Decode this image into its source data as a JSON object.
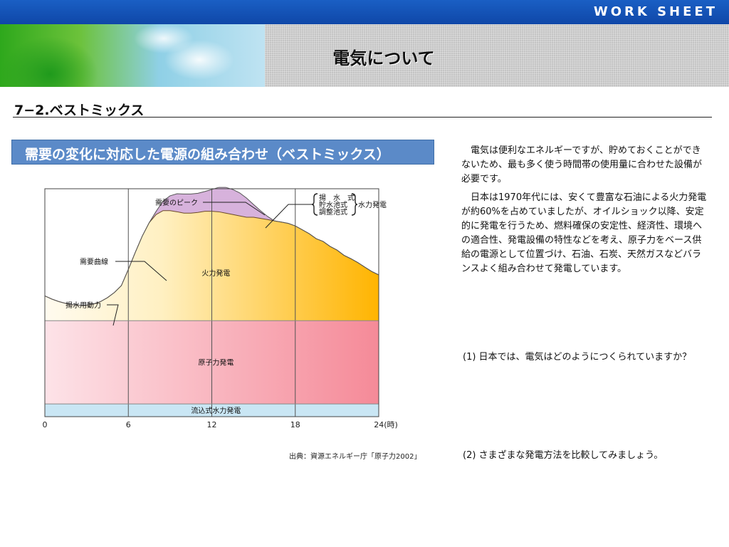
{
  "header": {
    "label": "WORK SHEET",
    "title": "電気について"
  },
  "section": {
    "title": "7−2.ベストミックス"
  },
  "chart_header": "需要の変化に対応した電源の組み合わせ（ベストミックス）",
  "chart_data": {
    "type": "area",
    "title": "需要の変化に対応した電源の組み合わせ（ベストミックス）",
    "x_ticks": [
      "0",
      "6",
      "12",
      "18",
      "24(時)"
    ],
    "xlim": [
      0,
      24
    ],
    "ylim": [
      0,
      100
    ],
    "hour_step": 0.5,
    "series": [
      {
        "name": "流込式水力発電",
        "values": [
          5.6,
          5.6,
          5.6,
          5.6,
          5.6,
          5.6,
          5.6,
          5.6,
          5.6,
          5.6,
          5.6,
          5.6,
          5.6,
          5.6,
          5.6,
          5.6,
          5.6,
          5.6,
          5.6,
          5.6,
          5.6,
          5.6,
          5.6,
          5.6,
          5.6,
          5.6,
          5.6,
          5.6,
          5.6,
          5.6,
          5.6,
          5.6,
          5.6,
          5.6,
          5.6,
          5.6,
          5.6,
          5.6,
          5.6,
          5.6,
          5.6,
          5.6,
          5.6,
          5.6,
          5.6,
          5.6,
          5.6,
          5.6,
          5.6
        ]
      },
      {
        "name": "原子力発電",
        "values": [
          36.5,
          36.5,
          36.5,
          36.5,
          36.5,
          36.5,
          36.5,
          36.5,
          36.5,
          36.5,
          36.5,
          36.5,
          36.5,
          36.5,
          36.5,
          36.5,
          36.5,
          36.5,
          36.5,
          36.5,
          36.5,
          36.5,
          36.5,
          36.5,
          36.5,
          36.5,
          36.5,
          36.5,
          36.5,
          36.5,
          36.5,
          36.5,
          36.5,
          36.5,
          36.5,
          36.5,
          36.5,
          36.5,
          36.5,
          36.5,
          36.5,
          36.5,
          36.5,
          36.5,
          36.5,
          36.5,
          36.5,
          36.5,
          36.5
        ]
      },
      {
        "name": "火力発電",
        "values": [
          10.9,
          9.5,
          8.4,
          7.6,
          7.0,
          6.8,
          6.8,
          7.3,
          8.4,
          10.1,
          12.4,
          15.4,
          22.5,
          30.0,
          37.1,
          43.0,
          46.6,
          48.3,
          48.3,
          47.8,
          47.2,
          47.2,
          47.5,
          48.0,
          48.0,
          47.8,
          47.2,
          46.6,
          46.0,
          45.4,
          45.4,
          44.9,
          44.4,
          43.8,
          43.3,
          42.7,
          41.6,
          39.9,
          38.2,
          36.0,
          34.8,
          32.6,
          31.0,
          28.7,
          27.2,
          25.5,
          23.5,
          21.6,
          20.1
        ]
      },
      {
        "name": "揚水用動力",
        "values": [
          -4.7,
          -4.7,
          -4.7,
          -4.7,
          -4.7,
          -4.7,
          -4.7,
          -4.7,
          -4.7,
          -4.7,
          -4.7,
          -4.7,
          -4.7,
          -4.7,
          -4.7,
          -4.7,
          -4.7,
          -4.7,
          -4.7,
          -4.7,
          -4.7,
          -4.7,
          -4.7,
          -4.7,
          -4.7,
          -4.7,
          -4.7,
          -4.7,
          -4.7,
          -4.7,
          -4.7,
          -4.7,
          -4.7,
          -4.7,
          -4.7,
          -4.7,
          -4.7,
          -4.7,
          -4.7,
          -4.7,
          -4.7,
          -4.7,
          -4.7,
          -4.7,
          -4.7,
          -4.7,
          -4.7,
          -4.7,
          -4.7
        ]
      },
      {
        "name": "水力発電",
        "values": [
          0,
          0,
          0,
          0,
          0,
          0,
          0,
          0,
          0,
          0,
          0,
          0,
          0,
          0,
          0,
          0,
          1.4,
          4.2,
          6.5,
          7.9,
          8.4,
          8.4,
          8.4,
          8.7,
          9.6,
          10.7,
          11.3,
          11.0,
          10.1,
          8.4,
          5.6,
          3.4,
          1.4,
          0,
          0,
          0,
          0,
          0,
          0,
          0,
          0,
          0,
          0,
          0,
          0,
          0,
          0,
          0,
          0
        ]
      }
    ],
    "annotations": [
      "需要のピーク",
      "需要曲線",
      "揚水用動力",
      "水力発電"
    ],
    "pumped_storage_types": [
      "揚　水　式",
      "貯水池式",
      "調整池式"
    ],
    "band_colors": {
      "run_of_river": "#c9e6f4",
      "nuclear_light": "#fde3e8",
      "nuclear_dark": "#f58a98",
      "thermal_light": "#fff4d8",
      "thermal_dark": "#ffb400",
      "hydro_peak": "#d7b2dc",
      "pumping": "#e2f0e4"
    }
  },
  "source_note": "出典：資源エネルギー庁「原子力2002」",
  "body_text": {
    "p1": "電気は便利なエネルギーですが、貯めておくことができないため、最も多く使う時間帯の使用量に合わせた設備が必要です。",
    "p2": "日本は1970年代には、安くて豊富な石油による火力発電が約60%を占めていましたが、オイルショック以降、安定的に発電を行うため、燃料確保の安定性、経済性、環境への適合性、発電設備の特性などを考え、原子力をベース供給の電源として位置づけ、石油、石炭、天然ガスなどバランスよく組み合わせて発電しています。"
  },
  "questions": {
    "q1": "(1) 日本では、電気はどのようにつくられていますか？",
    "q2": "(2) さまざまな発電方法を比較してみましょう。"
  }
}
